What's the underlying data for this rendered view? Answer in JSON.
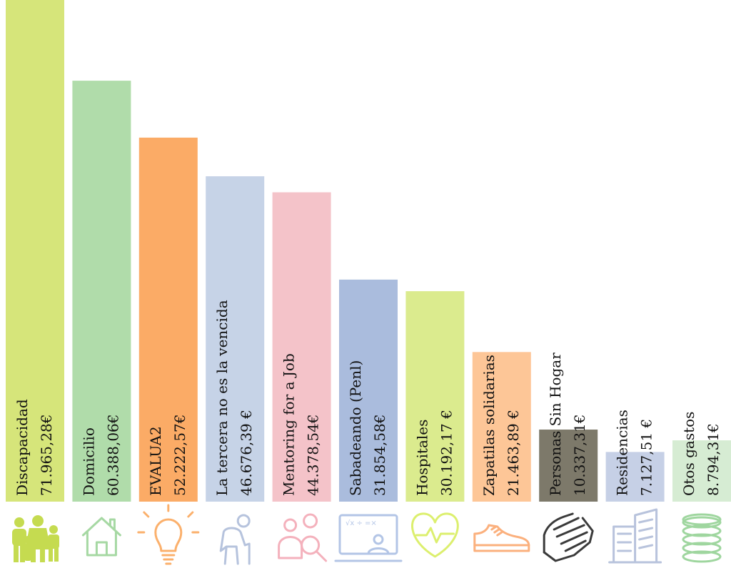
{
  "chart_data": {
    "type": "bar",
    "currency": "€",
    "categories": [
      "Discapacidad",
      "Domicilio",
      "EVALUA2",
      "La tercera no es la vencida",
      "Mentoring for a Job",
      "Sabadeando (Penl)",
      "Hospitales",
      "Zapatilas solidarias",
      "Personas Sin Hogar",
      "Residencias",
      "Otos gastos"
    ],
    "values": [
      71965.28,
      60388.06,
      52222.57,
      46676.39,
      44378.54,
      31854.58,
      30192.17,
      21463.89,
      10337.31,
      7127.51,
      8794.31
    ],
    "value_labels": [
      "71.965,28€",
      "60.388,06€",
      "52.222,57€",
      "46.676,39 €",
      "44.378,54€",
      "31.854,58€",
      "30.192,17 €",
      "21.463,89 €",
      "10.337,31€",
      "7.127,51 €",
      "8.794,31€"
    ],
    "colors": [
      "#d6e57a",
      "#b0dcaa",
      "#fbab66",
      "#c6d3e7",
      "#f4c3c9",
      "#aabcdd",
      "#dbeb8e",
      "#fdc697",
      "#7d796a",
      "#c6d0e6",
      "#d6ecd3"
    ],
    "icon_colors": [
      "#c5db50",
      "#a6d8a3",
      "#fbb06c",
      "#b6c3dd",
      "#f4b1bc",
      "#b3c5e6",
      "#dcef6e",
      "#fbb07d",
      "#3a3a3a",
      "#b8c3dc",
      "#9fd69f"
    ],
    "icons": [
      "family-icon",
      "house-icon",
      "lightbulb-icon",
      "elderly-person-icon",
      "mentoring-people-icon",
      "math-teacher-board-icon",
      "heart-pulse-icon",
      "sneaker-icon",
      "helping-hands-icon",
      "building-icon",
      "coins-icon"
    ],
    "title": "",
    "xlabel": "",
    "ylabel": "",
    "ylim": [
      0,
      71965.28
    ],
    "grid": false,
    "legend": "none"
  }
}
